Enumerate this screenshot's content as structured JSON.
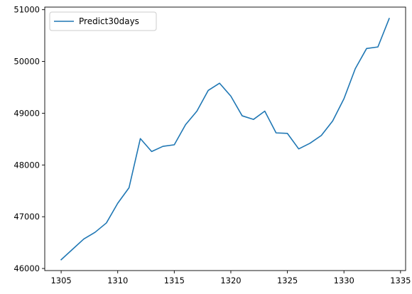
{
  "chart_data": {
    "type": "line",
    "title": "",
    "xlabel": "",
    "ylabel": "",
    "xlim": [
      1303.55,
      1335.45
    ],
    "ylim": [
      45960,
      51050
    ],
    "xticks": [
      1305,
      1310,
      1315,
      1320,
      1325,
      1330,
      1335
    ],
    "yticks": [
      46000,
      47000,
      48000,
      49000,
      50000,
      51000
    ],
    "grid": false,
    "legend_position": "top-left",
    "series": [
      {
        "name": "Predict30days",
        "color": "#1f77b4",
        "x": [
          1305,
          1306,
          1307,
          1308,
          1309,
          1310,
          1311,
          1312,
          1313,
          1314,
          1315,
          1316,
          1317,
          1318,
          1319,
          1320,
          1321,
          1322,
          1323,
          1324,
          1325,
          1326,
          1327,
          1328,
          1329,
          1330,
          1331,
          1332,
          1333,
          1334
        ],
        "values": [
          46170,
          46370,
          46570,
          46700,
          46880,
          47260,
          47560,
          48510,
          48260,
          48360,
          48390,
          48780,
          49040,
          49440,
          49580,
          49330,
          48950,
          48880,
          49040,
          48620,
          48610,
          48310,
          48420,
          48570,
          48850,
          49280,
          49860,
          50250,
          50280,
          50830
        ]
      }
    ]
  }
}
